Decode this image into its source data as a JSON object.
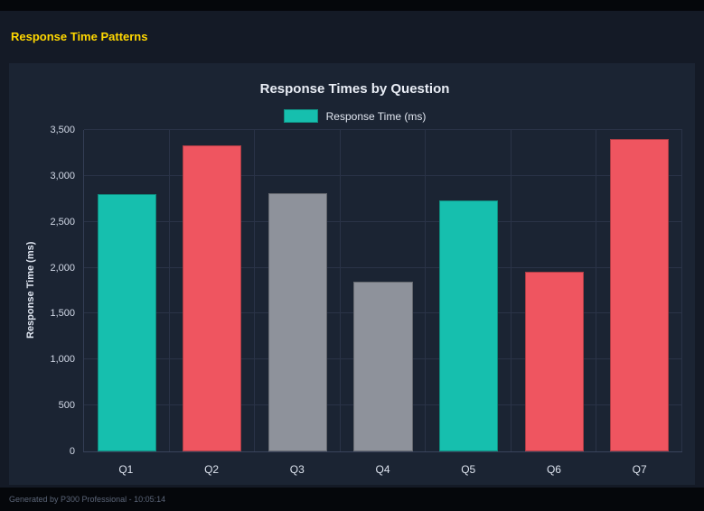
{
  "header": {
    "title": "Response Time Patterns"
  },
  "footer": {
    "text": "Generated by P300 Professional - 10:05:14"
  },
  "colors": {
    "accent_yellow": "#ffd700",
    "teal": "#16bfae",
    "red": "#ef5560",
    "gray": "#8e929b",
    "panel_bg": "#1b2433",
    "grid": "#2a3347"
  },
  "chart_data": {
    "type": "bar",
    "title": "Response Times by Question",
    "legend": [
      {
        "label": "Response Time (ms)",
        "color": "#16bfae"
      }
    ],
    "legend_position": "top",
    "categories": [
      "Q1",
      "Q2",
      "Q3",
      "Q4",
      "Q5",
      "Q6",
      "Q7"
    ],
    "values": [
      2800,
      3330,
      2810,
      1850,
      2730,
      1960,
      3400
    ],
    "bar_colors": [
      "#16bfae",
      "#ef5560",
      "#8e929b",
      "#8e929b",
      "#16bfae",
      "#ef5560",
      "#ef5560"
    ],
    "xlabel": "",
    "ylabel": "Response Time (ms)",
    "ylim": [
      0,
      3500
    ],
    "yticks": [
      0,
      500,
      1000,
      1500,
      2000,
      2500,
      3000,
      3500
    ],
    "ytick_labels": [
      "0",
      "500",
      "1,000",
      "1,500",
      "2,000",
      "2,500",
      "3,000",
      "3,500"
    ],
    "grid": true
  }
}
